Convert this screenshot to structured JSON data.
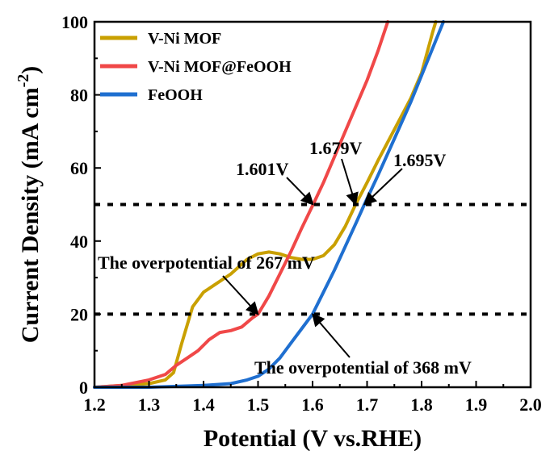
{
  "chart_data": {
    "type": "line",
    "title": "",
    "xlabel": "Potential (V vs.RHE)",
    "ylabel_main": "Current Density (mA cm",
    "ylabel_sup": "-2",
    "ylabel_close": ")",
    "xlim": [
      1.2,
      2.0
    ],
    "ylim": [
      0,
      100
    ],
    "x_ticks": [
      "1.2",
      "1.3",
      "1.4",
      "1.5",
      "1.6",
      "1.7",
      "1.8",
      "1.9",
      "2.0"
    ],
    "y_ticks": [
      "0",
      "20",
      "40",
      "60",
      "80",
      "100"
    ],
    "grid": false,
    "legend_position": "top-left",
    "series": [
      {
        "name": "V-Ni MOF",
        "color": "#c9a000",
        "x": [
          1.2,
          1.3,
          1.33,
          1.345,
          1.36,
          1.38,
          1.4,
          1.42,
          1.45,
          1.48,
          1.5,
          1.52,
          1.54,
          1.56,
          1.58,
          1.6,
          1.62,
          1.64,
          1.66,
          1.679,
          1.7,
          1.72,
          1.75,
          1.78,
          1.8,
          1.82,
          1.826
        ],
        "y": [
          0,
          1,
          2,
          4,
          12,
          22,
          26,
          28,
          31,
          35,
          36.5,
          37,
          36.5,
          35.5,
          35,
          35,
          36,
          39,
          44,
          50,
          56,
          62,
          70.5,
          79,
          86,
          97,
          100
        ]
      },
      {
        "name": "V-Ni MOF@FeOOH",
        "color": "#f04848",
        "x": [
          1.2,
          1.25,
          1.3,
          1.33,
          1.35,
          1.37,
          1.39,
          1.41,
          1.43,
          1.45,
          1.47,
          1.49,
          1.5,
          1.52,
          1.54,
          1.56,
          1.58,
          1.601,
          1.62,
          1.64,
          1.66,
          1.68,
          1.7,
          1.72,
          1.738
        ],
        "y": [
          0,
          0.5,
          2,
          3.5,
          6,
          8,
          10,
          13,
          15,
          15.5,
          16.5,
          19,
          20,
          25,
          31,
          37,
          43.5,
          50,
          56,
          63,
          70,
          77,
          84,
          92,
          100
        ]
      },
      {
        "name": "FeOOH",
        "color": "#1f6fd0",
        "x": [
          1.2,
          1.3,
          1.4,
          1.45,
          1.48,
          1.5,
          1.52,
          1.54,
          1.56,
          1.58,
          1.6,
          1.62,
          1.64,
          1.66,
          1.68,
          1.695,
          1.72,
          1.75,
          1.78,
          1.81,
          1.84
        ],
        "y": [
          0,
          0,
          0.5,
          1,
          2,
          3,
          5,
          8,
          12,
          16,
          20,
          26,
          32,
          38.5,
          45,
          50,
          58,
          68,
          78,
          89,
          100
        ]
      }
    ],
    "reference_lines": [
      {
        "y": 50,
        "style": "dotted"
      },
      {
        "y": 20,
        "style": "dotted"
      }
    ],
    "annotations": [
      {
        "text": "1.601V",
        "x": 1.601,
        "y": 50
      },
      {
        "text": "1.679V",
        "x": 1.679,
        "y": 50
      },
      {
        "text": "1.695V",
        "x": 1.695,
        "y": 50
      },
      {
        "text": "The overpotential of 267 mV",
        "x": 1.5,
        "y": 20
      },
      {
        "text": "The overpotential of 368 mV",
        "x": 1.6,
        "y": 20
      }
    ]
  }
}
